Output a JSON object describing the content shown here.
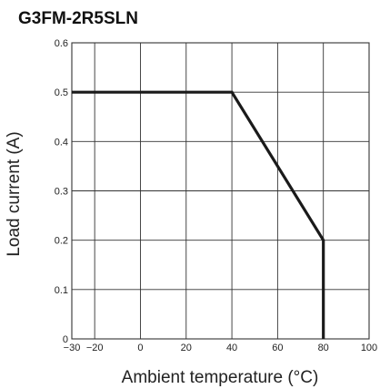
{
  "chart_data": {
    "type": "line",
    "title": "G3FM-2R5SLN",
    "xlabel": "Ambient temperature (°C)",
    "ylabel": "Load current (A)",
    "xlim": [
      -30,
      100
    ],
    "ylim": [
      0,
      0.6
    ],
    "grid": true,
    "x_ticks": [
      {
        "value": -30,
        "label": "−30"
      },
      {
        "value": -20,
        "label": "−20"
      },
      {
        "value": 0,
        "label": "0"
      },
      {
        "value": 20,
        "label": "20"
      },
      {
        "value": 40,
        "label": "40"
      },
      {
        "value": 60,
        "label": "60"
      },
      {
        "value": 80,
        "label": "80"
      },
      {
        "value": 100,
        "label": "100"
      }
    ],
    "y_ticks": [
      {
        "value": 0,
        "label": "0"
      },
      {
        "value": 0.1,
        "label": "0.1"
      },
      {
        "value": 0.2,
        "label": "0.2"
      },
      {
        "value": 0.3,
        "label": "0.3"
      },
      {
        "value": 0.4,
        "label": "0.4"
      },
      {
        "value": 0.5,
        "label": "0.5"
      },
      {
        "value": 0.6,
        "label": "0.6"
      }
    ],
    "series": [
      {
        "x": [
          -30,
          40,
          80,
          80
        ],
        "y": [
          0.5,
          0.5,
          0.2,
          0
        ]
      }
    ],
    "colors": {
      "curve": "#1a1a1a",
      "grid": "#333333",
      "frame": "#333333"
    }
  }
}
